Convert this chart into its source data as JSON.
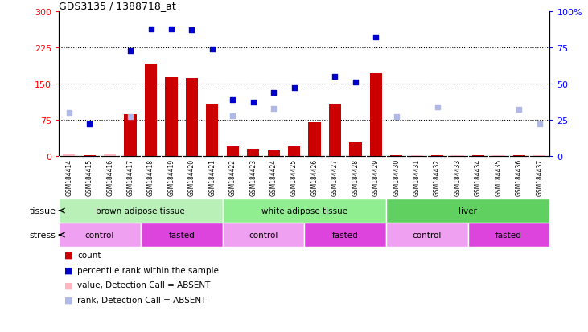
{
  "title": "GDS3135 / 1388718_at",
  "samples": [
    "GSM184414",
    "GSM184415",
    "GSM184416",
    "GSM184417",
    "GSM184418",
    "GSM184419",
    "GSM184420",
    "GSM184421",
    "GSM184422",
    "GSM184423",
    "GSM184424",
    "GSM184425",
    "GSM184426",
    "GSM184427",
    "GSM184428",
    "GSM184429",
    "GSM184430",
    "GSM184431",
    "GSM184432",
    "GSM184433",
    "GSM184434",
    "GSM184435",
    "GSM184436",
    "GSM184437"
  ],
  "count_values": [
    3,
    2,
    4,
    87,
    192,
    163,
    162,
    108,
    20,
    15,
    12,
    20,
    70,
    108,
    28,
    172,
    2,
    2,
    2,
    2,
    2,
    2,
    2,
    2
  ],
  "percentile_values": [
    null,
    22,
    null,
    73,
    88,
    88,
    87,
    74,
    39,
    37,
    44,
    47,
    null,
    55,
    51,
    82,
    null,
    null,
    null,
    null,
    null,
    null,
    null,
    null
  ],
  "absent_count": [
    3,
    null,
    4,
    null,
    null,
    null,
    null,
    null,
    null,
    null,
    null,
    null,
    null,
    null,
    null,
    null,
    null,
    2,
    null,
    2,
    null,
    2,
    null,
    2
  ],
  "absent_rank": [
    30,
    null,
    null,
    27,
    null,
    null,
    null,
    null,
    28,
    null,
    33,
    null,
    null,
    null,
    null,
    null,
    27,
    null,
    34,
    null,
    null,
    null,
    32,
    22
  ],
  "tissue_groups": [
    {
      "label": "brown adipose tissue",
      "start": 0,
      "end": 8,
      "color": "#b8f0b8"
    },
    {
      "label": "white adipose tissue",
      "start": 8,
      "end": 16,
      "color": "#90ee90"
    },
    {
      "label": "liver",
      "start": 16,
      "end": 24,
      "color": "#60d060"
    }
  ],
  "stress_groups": [
    {
      "label": "control",
      "start": 0,
      "end": 4,
      "color": "#f0a0f0"
    },
    {
      "label": "fasted",
      "start": 4,
      "end": 8,
      "color": "#dd44dd"
    },
    {
      "label": "control",
      "start": 8,
      "end": 12,
      "color": "#f0a0f0"
    },
    {
      "label": "fasted",
      "start": 12,
      "end": 16,
      "color": "#dd44dd"
    },
    {
      "label": "control",
      "start": 16,
      "end": 20,
      "color": "#f0a0f0"
    },
    {
      "label": "fasted",
      "start": 20,
      "end": 24,
      "color": "#dd44dd"
    }
  ],
  "ylim_left": [
    0,
    300
  ],
  "ylim_right": [
    0,
    100
  ],
  "yticks_left": [
    0,
    75,
    150,
    225,
    300
  ],
  "yticks_right": [
    0,
    25,
    50,
    75,
    100
  ],
  "bar_color": "#cc0000",
  "dot_color": "#0000cc",
  "absent_count_color": "#ffb6c1",
  "absent_rank_color": "#b0b8e8",
  "background_color": "#ffffff",
  "plot_bg_color": "#ffffff",
  "xticklabel_bg": "#c8c8c8"
}
